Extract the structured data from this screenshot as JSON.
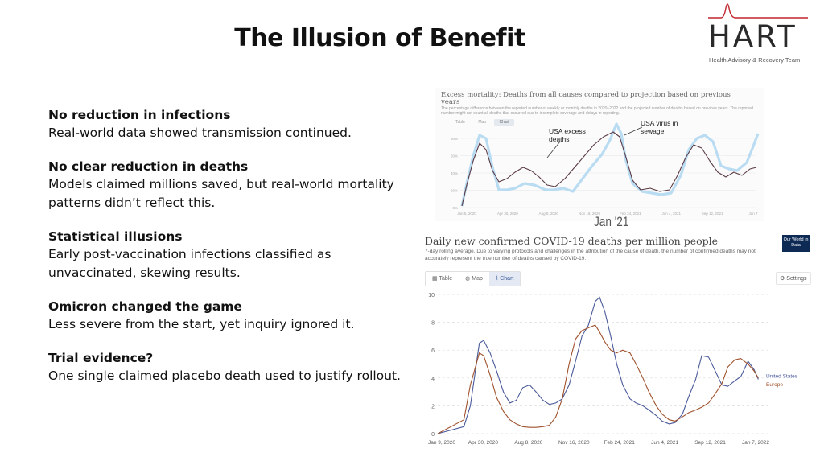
{
  "slide": {
    "title": "The Illusion of Benefit",
    "logo_text": "HART",
    "logo_sub": "Health Advisory & Recovery Team"
  },
  "points": [
    {
      "heading": "No reduction in infections",
      "body": "Real-world data showed transmission continued."
    },
    {
      "heading": "No clear reduction in deaths",
      "body": "Models claimed millions saved, but real-world mortality patterns didn’t reflect this."
    },
    {
      "heading": "Statistical illusions",
      "body": "Early post-vaccination infections classified as unvaccinated, skewing results."
    },
    {
      "heading": "Omicron changed the game",
      "body": "Less severe from the start, yet inquiry ignored it."
    },
    {
      "heading": "Trial evidence?",
      "body": "One single claimed placebo death used to justify rollout."
    }
  ],
  "chart_top": {
    "title": "Excess mortality: Deaths from all causes compared to projection based on previous years",
    "subtitle": "The percentage difference between the reported number of weekly or monthly deaths in 2020–2022 and the projected number of deaths based on previous years. The reported number might not count all deaths that occurred due to incomplete coverage and delays in reporting.",
    "tabs": [
      "Table",
      "Map",
      "Chart"
    ],
    "annotation_deaths": "USA excess deaths",
    "annotation_sewage": "USA virus in sewage",
    "jan_label": "Jan '21",
    "y_ticks": [
      "80%",
      "60%",
      "40%",
      "20%",
      "0%"
    ],
    "x_ticks": [
      "Jan 5, 2020",
      "Apr 30, 2020",
      "Aug 9, 2020",
      "Nov 16, 2020",
      "Feb 24, 2021",
      "Jun 4, 2021",
      "Sep 12, 2021",
      "Jan 7"
    ],
    "colors": {
      "deaths": "#5a3a45",
      "sewage": "#b9dcf2"
    }
  },
  "chart_bottom": {
    "title": "Daily new confirmed COVID-19 deaths per million people",
    "subtitle": "7-day rolling average. Due to varying protocols and challenges in the attribution of the cause of death, the number of confirmed deaths may not accurately represent the true number of deaths caused by COVID-19.",
    "owid_logo": "Our World in Data",
    "tabs": [
      "Table",
      "Map",
      "Chart"
    ],
    "settings_label": "Settings",
    "colors": {
      "us": "#4a5a9a",
      "europe": "#a0522d"
    }
  },
  "chart_data": {
    "type": "line",
    "title": "Daily new confirmed COVID-19 deaths per million people",
    "ylim": [
      0,
      10
    ],
    "y_ticks": [
      0,
      2,
      4,
      6,
      8,
      10
    ],
    "x_tick_labels": [
      "Jan 9, 2020",
      "Apr 30, 2020",
      "Aug 8, 2020",
      "Nov 16, 2020",
      "Feb 24, 2021",
      "Jun 4, 2021",
      "Sep 12, 2021",
      "Jan 7, 2022"
    ],
    "grid": true,
    "legend_position": "right-end",
    "x": [
      "2020-01-09",
      "2020-03-10",
      "2020-03-25",
      "2020-04-15",
      "2020-04-25",
      "2020-05-10",
      "2020-05-25",
      "2020-06-10",
      "2020-06-25",
      "2020-07-10",
      "2020-07-25",
      "2020-08-10",
      "2020-08-25",
      "2020-09-10",
      "2020-09-25",
      "2020-10-10",
      "2020-10-25",
      "2020-11-10",
      "2020-11-25",
      "2020-12-10",
      "2020-12-25",
      "2021-01-10",
      "2021-01-20",
      "2021-02-01",
      "2021-02-15",
      "2021-03-01",
      "2021-03-15",
      "2021-04-01",
      "2021-04-15",
      "2021-05-01",
      "2021-05-15",
      "2021-06-01",
      "2021-06-15",
      "2021-07-01",
      "2021-07-15",
      "2021-08-01",
      "2021-08-15",
      "2021-09-01",
      "2021-09-15",
      "2021-10-01",
      "2021-10-15",
      "2021-11-01",
      "2021-11-15",
      "2021-12-01",
      "2021-12-15",
      "2022-01-01",
      "2022-01-15",
      "2022-01-25"
    ],
    "series": [
      {
        "name": "United States",
        "values": [
          0,
          0.5,
          2.0,
          6.5,
          6.7,
          5.8,
          4.5,
          3.0,
          2.2,
          2.4,
          3.3,
          3.5,
          3.0,
          2.4,
          2.1,
          2.2,
          2.5,
          3.5,
          5.2,
          7.0,
          7.8,
          9.5,
          9.8,
          8.8,
          7.0,
          5.0,
          3.5,
          2.5,
          2.2,
          2.0,
          1.7,
          1.3,
          0.9,
          0.7,
          0.8,
          1.4,
          2.6,
          3.9,
          5.6,
          5.5,
          4.6,
          3.5,
          3.4,
          3.8,
          4.1,
          5.2,
          4.6,
          3.9
        ]
      },
      {
        "name": "Europe",
        "values": [
          0,
          1.0,
          3.5,
          5.8,
          5.6,
          4.2,
          2.6,
          1.6,
          1.0,
          0.7,
          0.5,
          0.45,
          0.45,
          0.5,
          0.6,
          1.2,
          2.5,
          5.0,
          6.8,
          7.4,
          7.6,
          7.8,
          7.3,
          6.6,
          6.0,
          5.8,
          6.0,
          5.8,
          5.0,
          4.0,
          3.0,
          2.0,
          1.4,
          1.0,
          0.9,
          1.2,
          1.5,
          1.7,
          1.9,
          2.2,
          2.8,
          3.6,
          4.8,
          5.3,
          5.4,
          5.0,
          4.5,
          4.0
        ]
      }
    ]
  }
}
